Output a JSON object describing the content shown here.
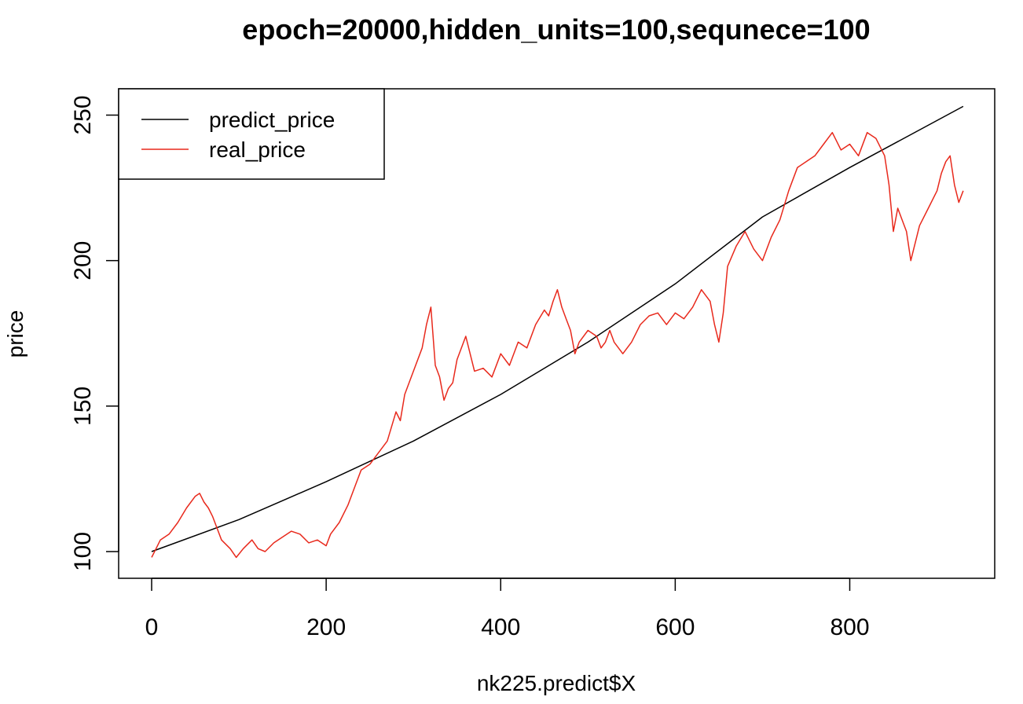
{
  "chart_data": {
    "type": "line",
    "title": "epoch=20000,hidden_units=100,sequnece=100",
    "xlabel": "nk225.predict$X",
    "ylabel": "price",
    "xlim": [
      0,
      930
    ],
    "ylim": [
      100,
      252
    ],
    "x_ticks": [
      0,
      200,
      400,
      600,
      800
    ],
    "y_ticks": [
      100,
      150,
      200,
      250
    ],
    "legend_position": "top-left",
    "grid": false,
    "series": [
      {
        "name": "predict_price",
        "color": "#000000",
        "x": [
          0,
          100,
          200,
          300,
          400,
          500,
          600,
          700,
          800,
          930
        ],
        "y": [
          100,
          111,
          124,
          138,
          154,
          172,
          192,
          215,
          232,
          253
        ]
      },
      {
        "name": "real_price",
        "color": "#e8291c",
        "x": [
          0,
          5,
          10,
          20,
          30,
          40,
          50,
          55,
          60,
          65,
          70,
          75,
          80,
          90,
          97,
          105,
          115,
          122,
          130,
          140,
          150,
          160,
          170,
          180,
          190,
          200,
          205,
          215,
          225,
          235,
          240,
          250,
          260,
          270,
          280,
          285,
          290,
          300,
          310,
          315,
          320,
          325,
          330,
          335,
          340,
          345,
          350,
          360,
          370,
          380,
          390,
          400,
          410,
          420,
          430,
          440,
          450,
          455,
          460,
          465,
          470,
          475,
          480,
          485,
          490,
          500,
          510,
          515,
          520,
          525,
          530,
          540,
          550,
          560,
          570,
          580,
          590,
          600,
          610,
          620,
          630,
          640,
          645,
          650,
          655,
          660,
          670,
          680,
          690,
          700,
          710,
          720,
          730,
          740,
          750,
          760,
          770,
          780,
          790,
          800,
          810,
          820,
          830,
          840,
          845,
          850,
          855,
          860,
          865,
          870,
          880,
          890,
          900,
          905,
          910,
          915,
          920,
          925,
          930
        ],
        "y": [
          98,
          101,
          104,
          106,
          110,
          115,
          119,
          120,
          117,
          115,
          112,
          108,
          104,
          101,
          98,
          101,
          104,
          101,
          100,
          103,
          105,
          107,
          106,
          103,
          104,
          102,
          106,
          110,
          116,
          124,
          128,
          130,
          134,
          138,
          148,
          145,
          154,
          162,
          170,
          178,
          184,
          164,
          160,
          152,
          156,
          158,
          166,
          174,
          162,
          163,
          160,
          168,
          164,
          172,
          170,
          178,
          183,
          181,
          186,
          190,
          184,
          180,
          176,
          168,
          172,
          176,
          174,
          170,
          172,
          176,
          172,
          168,
          172,
          178,
          181,
          182,
          178,
          182,
          180,
          184,
          190,
          186,
          178,
          172,
          182,
          198,
          205,
          210,
          204,
          200,
          208,
          214,
          224,
          232,
          234,
          236,
          240,
          244,
          238,
          240,
          236,
          244,
          242,
          236,
          226,
          210,
          218,
          214,
          210,
          200,
          212,
          218,
          224,
          230,
          234,
          236,
          226,
          220,
          224
        ]
      }
    ]
  }
}
